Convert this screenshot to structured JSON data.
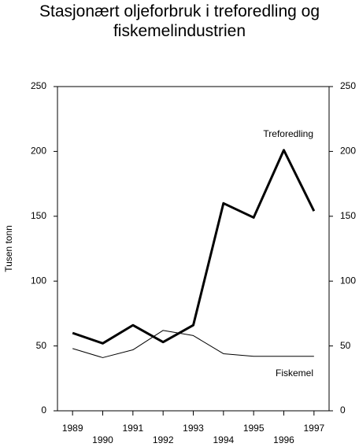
{
  "chart_data": {
    "type": "line",
    "title": "Stasjonært oljeforbruk i treforedling og fiskemelindustrien",
    "y_label": "Tusen tonn",
    "categories": [
      "1989",
      "1990",
      "1991",
      "1992",
      "1993",
      "1994",
      "1995",
      "1996",
      "1997"
    ],
    "series": [
      {
        "name": "Treforedling",
        "color": "#000000",
        "line_width": 3,
        "values": [
          60,
          52,
          66,
          53,
          66,
          160,
          149,
          201,
          154
        ]
      },
      {
        "name": "Fiskemel",
        "color": "#000000",
        "line_width": 1,
        "values": [
          48,
          41,
          47,
          62,
          58,
          44,
          42,
          42,
          42
        ]
      }
    ],
    "ylim": [
      0,
      250
    ],
    "yticks": [
      0,
      50,
      100,
      150,
      200,
      250
    ],
    "y2lim": [
      0,
      250
    ],
    "y2ticks": [
      0,
      50,
      100,
      150,
      200,
      250
    ],
    "grid": false
  }
}
